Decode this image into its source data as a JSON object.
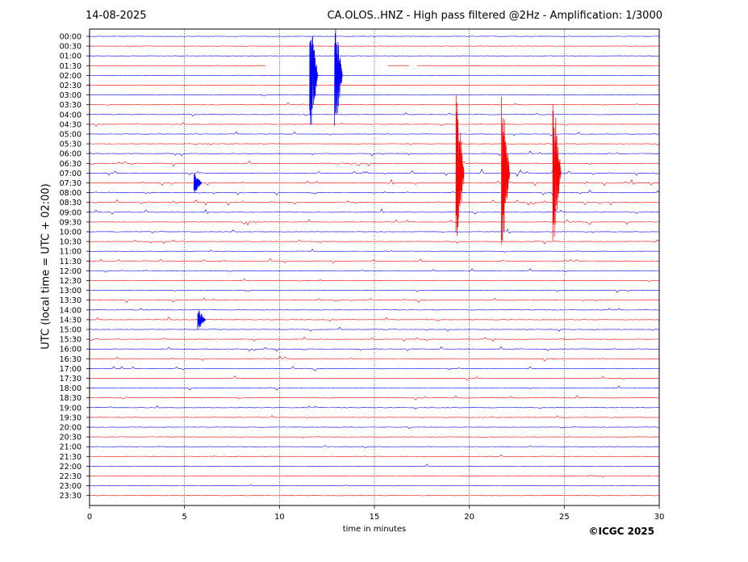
{
  "header": {
    "date": "14-08-2025",
    "title": "CA.OLOS..HNZ - High pass filtered @2Hz - Amplification: 1/3000"
  },
  "footer": {
    "credit": "©ICGC 2025"
  },
  "chart_data": {
    "type": "line",
    "title": "CA.OLOS..HNZ - High pass filtered @2Hz - Amplification: 1/3000",
    "xlabel": "time in minutes",
    "ylabel": "UTC (local time = UTC + 02:00)",
    "xlim": [
      0,
      30
    ],
    "x_ticks": [
      0,
      5,
      10,
      15,
      20,
      25,
      30
    ],
    "x_gridlines": "dotted at 5, 10, 15, 20, 25",
    "row_labels": [
      "00:00",
      "00:30",
      "01:00",
      "01:30",
      "02:00",
      "02:30",
      "03:00",
      "03:30",
      "04:00",
      "04:30",
      "05:00",
      "05:30",
      "06:00",
      "06:30",
      "07:00",
      "07:30",
      "08:00",
      "08:30",
      "09:00",
      "09:30",
      "10:00",
      "10:30",
      "11:00",
      "11:30",
      "12:00",
      "12:30",
      "13:00",
      "13:30",
      "14:00",
      "14:30",
      "15:00",
      "15:30",
      "16:00",
      "16:30",
      "17:00",
      "17:30",
      "18:00",
      "18:30",
      "19:00",
      "19:30",
      "20:00",
      "20:30",
      "21:00",
      "21:30",
      "22:00",
      "22:30",
      "23:00",
      "23:30"
    ],
    "trace_colors": [
      "#0000ff",
      "#ff0000"
    ],
    "activity": [
      0.02,
      0.02,
      0.04,
      0.0,
      0.0,
      0.02,
      0.04,
      0.25,
      0.3,
      0.35,
      0.4,
      0.45,
      0.5,
      0.7,
      0.95,
      0.9,
      0.8,
      0.75,
      0.7,
      0.65,
      0.55,
      0.5,
      0.45,
      0.45,
      0.35,
      0.35,
      0.3,
      0.35,
      0.4,
      0.45,
      0.45,
      0.45,
      0.45,
      0.45,
      0.45,
      0.4,
      0.4,
      0.35,
      0.3,
      0.25,
      0.2,
      0.15,
      0.1,
      0.05,
      0.04,
      0.06,
      0.04,
      0.02
    ],
    "gaps": [
      {
        "row": "01:30",
        "from": 9.3,
        "to": 15.7
      },
      {
        "row": "01:30",
        "from": 16.9,
        "to": 17.2
      }
    ],
    "large_events": [
      {
        "row": "02:00",
        "minute": 11.8,
        "color": "#0000ff"
      },
      {
        "row": "02:00",
        "minute": 13.1,
        "color": "#0000ff"
      },
      {
        "row": "07:00",
        "minute": 19.5,
        "color": "#ff0000"
      },
      {
        "row": "07:00",
        "minute": 21.9,
        "color": "#ff0000"
      },
      {
        "row": "07:00",
        "minute": 24.6,
        "color": "#ff0000"
      },
      {
        "row": "07:30",
        "minute": 5.7,
        "color": "#0000ff"
      },
      {
        "row": "14:30",
        "minute": 5.9,
        "color": "#0000ff"
      }
    ]
  }
}
